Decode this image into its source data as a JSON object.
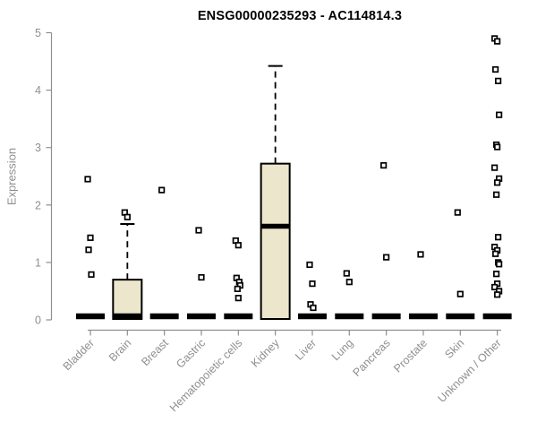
{
  "page": {
    "title": "ENSG00000235293 - AC114814.3"
  },
  "chart_data": {
    "type": "boxplot",
    "title": "ENSG00000235293 - AC114814.3",
    "ylabel": "Expression",
    "xlabel": "",
    "ylim": [
      0,
      5
    ],
    "yticks": [
      0,
      1,
      2,
      3,
      4,
      5
    ],
    "grid": false,
    "legend": "none",
    "box_fill_color": "#ECE7CC",
    "box_stroke_color": "#000000",
    "axis_color": "#8f8f8f",
    "outlier_marker": "open-square",
    "categories": [
      "Bladder",
      "Brain",
      "Breast",
      "Gastric",
      "Hematopoietic cells",
      "Kidney",
      "Liver",
      "Lung",
      "Pancreas",
      "Prostate",
      "Skin",
      "Unknown / Other"
    ],
    "boxes": [
      {
        "category": "Bladder",
        "q1": 0,
        "median": 0,
        "q3": 0,
        "whisker_low": 0,
        "whisker_high": 0,
        "outliers": [
          2.45,
          1.43,
          1.22,
          0.79
        ]
      },
      {
        "category": "Brain",
        "q1": 0,
        "median": 0,
        "q3": 0.7,
        "whisker_low": 0,
        "whisker_high": 1.67,
        "outliers": [
          1.87,
          1.79
        ]
      },
      {
        "category": "Breast",
        "q1": 0,
        "median": 0,
        "q3": 0,
        "whisker_low": 0,
        "whisker_high": 0,
        "outliers": [
          2.26
        ]
      },
      {
        "category": "Gastric",
        "q1": 0,
        "median": 0,
        "q3": 0,
        "whisker_low": 0,
        "whisker_high": 0,
        "outliers": [
          1.56,
          0.74
        ]
      },
      {
        "category": "Hematopoietic cells",
        "q1": 0,
        "median": 0,
        "q3": 0,
        "whisker_low": 0,
        "whisker_high": 0,
        "outliers": [
          1.38,
          1.3,
          0.73,
          0.66,
          0.6,
          0.54,
          0.38
        ]
      },
      {
        "category": "Kidney",
        "q1": 0,
        "median": 1.63,
        "q3": 2.72,
        "whisker_low": 0,
        "whisker_high": 4.42,
        "outliers": []
      },
      {
        "category": "Liver",
        "q1": 0,
        "median": 0,
        "q3": 0,
        "whisker_low": 0,
        "whisker_high": 0,
        "outliers": [
          0.96,
          0.63,
          0.27,
          0.21
        ]
      },
      {
        "category": "Lung",
        "q1": 0,
        "median": 0,
        "q3": 0,
        "whisker_low": 0,
        "whisker_high": 0,
        "outliers": [
          0.81,
          0.66
        ]
      },
      {
        "category": "Pancreas",
        "q1": 0,
        "median": 0,
        "q3": 0,
        "whisker_low": 0,
        "whisker_high": 0,
        "outliers": [
          2.69,
          1.09
        ]
      },
      {
        "category": "Prostate",
        "q1": 0,
        "median": 0,
        "q3": 0,
        "whisker_low": 0,
        "whisker_high": 0,
        "outliers": [
          1.14
        ]
      },
      {
        "category": "Skin",
        "q1": 0,
        "median": 0,
        "q3": 0,
        "whisker_low": 0,
        "whisker_high": 0,
        "outliers": [
          1.87,
          0.45
        ]
      },
      {
        "category": "Unknown / Other",
        "q1": 0,
        "median": 0,
        "q3": 0,
        "whisker_low": 0,
        "whisker_high": 0,
        "outliers": [
          4.9,
          4.85,
          4.36,
          4.16,
          3.57,
          3.05,
          3.01,
          2.65,
          2.46,
          2.39,
          2.18,
          1.44,
          1.27,
          1.21,
          1.15,
          1.0,
          0.97,
          0.8,
          0.63,
          0.57,
          0.5,
          0.44
        ]
      }
    ]
  }
}
